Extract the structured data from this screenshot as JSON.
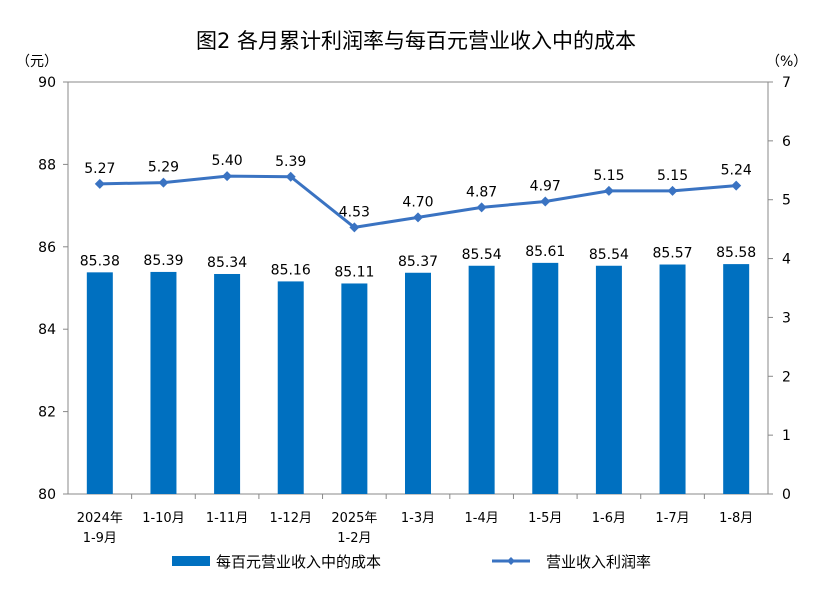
{
  "chart_data": {
    "type": "bar+line",
    "title": "图2  各月累计利润率与每百元营业收入中的成本",
    "left_unit": "（元）",
    "right_unit": "（%）",
    "categories": [
      "2024年\n1-9月",
      "1-10月",
      "1-11月",
      "1-12月",
      "2025年\n1-2月",
      "1-3月",
      "1-4月",
      "1-5月",
      "1-6月",
      "1-7月",
      "1-8月"
    ],
    "series": [
      {
        "name": "每百元营业收入中的成本",
        "type": "bar",
        "axis": "left",
        "color": "#0070C0",
        "values": [
          85.38,
          85.39,
          85.34,
          85.16,
          85.11,
          85.37,
          85.54,
          85.61,
          85.54,
          85.57,
          85.58
        ]
      },
      {
        "name": "营业收入利润率",
        "type": "line",
        "axis": "right",
        "color": "#3A73C2",
        "values": [
          5.27,
          5.29,
          5.4,
          5.39,
          4.53,
          4.7,
          4.87,
          4.97,
          5.15,
          5.15,
          5.24
        ]
      }
    ],
    "ylim_left": [
      80,
      90
    ],
    "yticks_left": [
      "80",
      "82",
      "84",
      "86",
      "88",
      "90"
    ],
    "ylim_right": [
      0,
      7
    ],
    "yticks_right": [
      "0",
      "1",
      "2",
      "3",
      "4",
      "5",
      "6",
      "7"
    ],
    "grid": false,
    "legend": "bottom"
  }
}
